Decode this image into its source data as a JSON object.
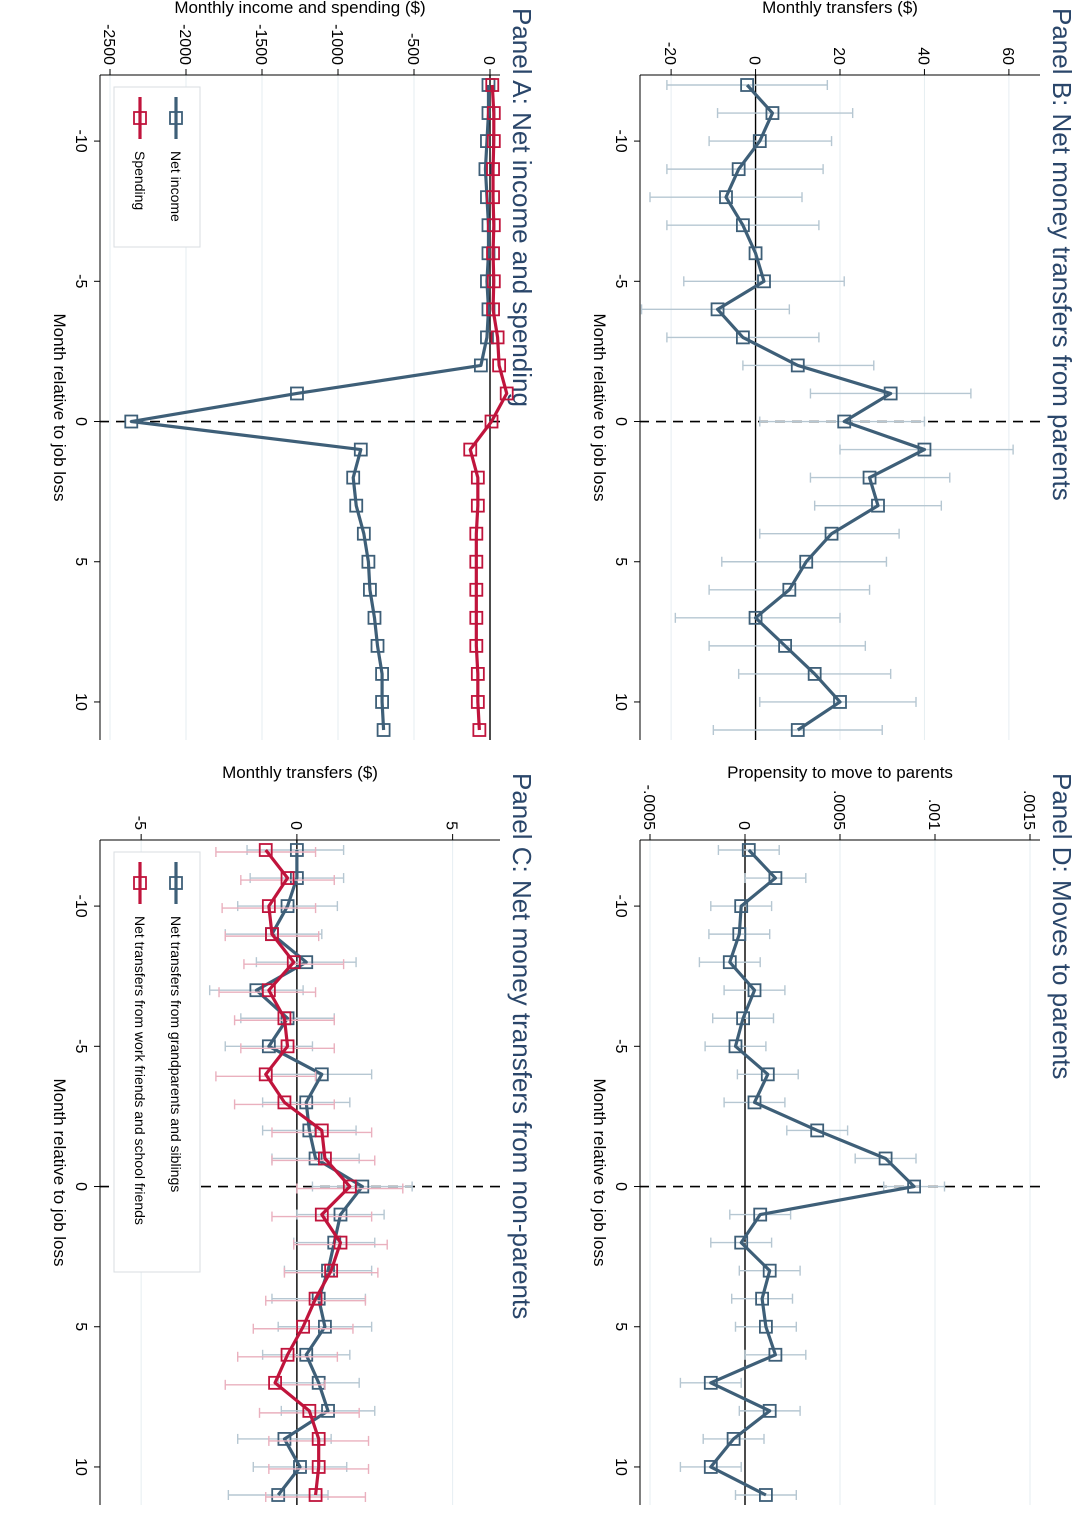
{
  "colors": {
    "navy": "#3e5f78",
    "crimson": "#c0143c",
    "navy_ci": "#b6c7d2",
    "crimson_ci": "#eab0be",
    "grid": "#e6eef2",
    "axis": "#000000",
    "title": "#2a466a"
  },
  "chart_data": [
    {
      "type": "line",
      "title": "Panel A: Net income and spending",
      "xlabel": "Month relative to job loss",
      "ylabel": "Monthly income and spending ($)",
      "xlim": [
        -12,
        11
      ],
      "ylim": [
        -2500,
        0
      ],
      "xticks": [
        -10,
        -5,
        0,
        5,
        10
      ],
      "xtick_labels": [
        "-10",
        "-5",
        "0",
        "5",
        "10"
      ],
      "yticks": [
        0,
        -500,
        -1000,
        -1500,
        -2000,
        -2500
      ],
      "ytick_labels": [
        "0",
        "-500",
        "-1000",
        "-1500",
        "-2000",
        "-2500"
      ],
      "hline": 0,
      "vline": 0,
      "x": [
        -12,
        -11,
        -10,
        -9,
        -8,
        -7,
        -6,
        -5,
        -4,
        -3,
        -2,
        -1,
        0,
        1,
        2,
        3,
        4,
        5,
        6,
        7,
        8,
        9,
        10,
        11
      ],
      "series": [
        {
          "name": "Net income",
          "color": "#3e5f78",
          "values": [
            -10,
            -10,
            -20,
            -30,
            -20,
            -10,
            -10,
            -20,
            -10,
            -20,
            -60,
            -1270,
            -2360,
            -850,
            -900,
            -880,
            -830,
            -800,
            -790,
            -760,
            -740,
            -710,
            -710,
            -700
          ]
        },
        {
          "name": "Spending",
          "color": "#c0143c",
          "values": [
            15,
            25,
            25,
            20,
            20,
            25,
            20,
            25,
            20,
            50,
            60,
            110,
            10,
            -130,
            -80,
            -80,
            -90,
            -90,
            -90,
            -90,
            -90,
            -80,
            -80,
            -70
          ]
        }
      ],
      "legend": {
        "position": "bottom-left",
        "entries": [
          "Net income",
          "Spending"
        ]
      }
    },
    {
      "type": "line",
      "title": "Panel B: Net money transfers from parents",
      "xlabel": "Month relative to job loss",
      "ylabel": "Monthly transfers ($)",
      "xlim": [
        -12,
        11
      ],
      "ylim": [
        -25,
        65
      ],
      "xticks": [
        -10,
        -5,
        0,
        5,
        10
      ],
      "xtick_labels": [
        "-10",
        "-5",
        "0",
        "5",
        "10"
      ],
      "yticks": [
        60,
        40,
        20,
        0,
        -20
      ],
      "ytick_labels": [
        "60",
        "40",
        "20",
        "0",
        "-20"
      ],
      "hline": 0,
      "vline": 0,
      "x": [
        -12,
        -11,
        -10,
        -9,
        -8,
        -7,
        -6,
        -5,
        -4,
        -3,
        -2,
        -1,
        0,
        1,
        2,
        3,
        4,
        5,
        6,
        7,
        8,
        9,
        10,
        11
      ],
      "series": [
        {
          "name": "Net money transfers from parents",
          "color": "#3e5f78",
          "values": [
            -2,
            4,
            1,
            -4,
            -7,
            -3,
            0,
            2,
            -9,
            -3,
            10,
            32,
            21,
            40,
            27,
            29,
            18,
            12,
            8,
            0,
            7,
            14,
            20,
            10
          ],
          "ci_low": [
            -21,
            -9,
            -11,
            -21,
            -25,
            -21,
            0,
            -17,
            -27,
            -21,
            -3,
            13,
            1,
            20,
            13,
            14,
            1,
            -8,
            -11,
            -19,
            -11,
            -4,
            1,
            -10
          ],
          "ci_high": [
            17,
            23,
            18,
            16,
            11,
            15,
            0,
            21,
            8,
            15,
            28,
            51,
            40,
            61,
            46,
            44,
            34,
            31,
            27,
            20,
            26,
            32,
            38,
            30
          ]
        }
      ]
    },
    {
      "type": "line",
      "title": "Panel C: Net money transfers from non-parents",
      "xlabel": "Month relative to job loss",
      "ylabel": "Monthly transfers ($)",
      "xlim": [
        -12,
        11
      ],
      "ylim": [
        -6,
        6.2
      ],
      "xticks": [
        -10,
        -5,
        0,
        5,
        10
      ],
      "xtick_labels": [
        "-10",
        "-5",
        "0",
        "5",
        "10"
      ],
      "yticks": [
        5,
        0,
        -5
      ],
      "ytick_labels": [
        "5",
        "0",
        "-5"
      ],
      "hline": 0,
      "vline": 0,
      "x": [
        -12,
        -11,
        -10,
        -9,
        -8,
        -7,
        -6,
        -5,
        -4,
        -3,
        -2,
        -1,
        0,
        1,
        2,
        3,
        4,
        5,
        6,
        7,
        8,
        9,
        10,
        11
      ],
      "series": [
        {
          "name": "Net transfers from grandparents and siblings",
          "color": "#3e5f78",
          "values": [
            0,
            0,
            -0.3,
            -0.8,
            0.3,
            -1.3,
            -0.3,
            -0.9,
            0.8,
            0.3,
            0.4,
            0.6,
            2.1,
            1.4,
            1.2,
            1.0,
            0.7,
            0.9,
            0.3,
            0.7,
            1.0,
            -0.4,
            0.1,
            -0.6
          ],
          "ci_low": [
            -1.6,
            -1.5,
            -1.9,
            -2.3,
            -1.3,
            -2.8,
            -1.8,
            -2.3,
            -0.8,
            -1.1,
            -1.1,
            -0.8,
            0.5,
            0,
            -0.1,
            -0.4,
            -0.8,
            -0.6,
            -1.1,
            -0.6,
            -0.5,
            -1.9,
            -1.4,
            -2.2
          ],
          "ci_high": [
            1.5,
            1.5,
            1.3,
            0.8,
            1.9,
            0.2,
            1.2,
            0.5,
            2.4,
            1.7,
            1.9,
            2.0,
            3.7,
            2.8,
            2.5,
            2.4,
            2.2,
            2.4,
            1.7,
            2.0,
            2.5,
            1.1,
            1.6,
            1.0
          ]
        },
        {
          "name": "Net transfers from work friends and school friends",
          "color": "#c0143c",
          "values": [
            -1.0,
            -0.3,
            -0.9,
            -0.8,
            -0.1,
            -0.9,
            -0.4,
            -0.3,
            -1.0,
            -0.4,
            0.8,
            0.9,
            1.7,
            0.8,
            1.4,
            1.1,
            0.6,
            0.2,
            -0.3,
            -0.7,
            0.4,
            0.7,
            0.7,
            0.6
          ],
          "ci_low": [
            -2.6,
            -1.8,
            -2.4,
            -2.3,
            -1.7,
            -2.5,
            -2.0,
            -1.8,
            -2.6,
            -2.0,
            -0.8,
            -0.8,
            0,
            -0.8,
            -0.1,
            -0.4,
            -1.0,
            -1.4,
            -1.9,
            -2.3,
            -1.2,
            -0.9,
            -0.9,
            -1.0
          ],
          "ci_high": [
            0.6,
            1.2,
            0.6,
            0.7,
            1.5,
            0.6,
            1.2,
            1.2,
            0.6,
            1.2,
            2.4,
            2.5,
            3.4,
            2.4,
            2.9,
            2.6,
            2.2,
            1.8,
            1.3,
            0.9,
            2.0,
            2.3,
            2.3,
            2.2
          ]
        }
      ],
      "legend": {
        "position": "top-left",
        "entries": [
          "Net transfers from grandparents and siblings",
          "Net transfers from work friends and school friends"
        ]
      }
    },
    {
      "type": "line",
      "title": "Panel D: Moves to parents",
      "xlabel": "Month relative to job loss",
      "ylabel": "Propensity to move to parents",
      "xlim": [
        -12,
        11
      ],
      "ylim": [
        -0.0005,
        0.0015
      ],
      "xticks": [
        -10,
        -5,
        0,
        5,
        10
      ],
      "xtick_labels": [
        "-10",
        "-5",
        "0",
        "5",
        "10"
      ],
      "yticks": [
        0.0015,
        0.001,
        0.0005,
        0,
        -0.0005
      ],
      "ytick_labels": [
        ".0015",
        ".001",
        ".0005",
        "0",
        "-.0005"
      ],
      "hline": 0,
      "vline": 0,
      "x": [
        -12,
        -11,
        -10,
        -9,
        -8,
        -7,
        -6,
        -5,
        -4,
        -3,
        -2,
        -1,
        0,
        1,
        2,
        3,
        4,
        5,
        6,
        7,
        8,
        9,
        10,
        11
      ],
      "series": [
        {
          "name": "Moves to parents",
          "color": "#3e5f78",
          "values": [
            2e-05,
            0.00016,
            -2e-05,
            -3e-05,
            -8e-05,
            5e-05,
            -1e-05,
            -5e-05,
            0.00012,
            5e-05,
            0.00038,
            0.00074,
            0.00089,
            8e-05,
            -2e-05,
            0.00013,
            9e-05,
            0.00011,
            0.00016,
            -0.00018,
            0.00013,
            -6e-05,
            -0.00018,
            0.00011
          ],
          "ci_low": [
            -0.00014,
            0,
            -0.00018,
            -0.00019,
            -0.00024,
            -0.00011,
            -0.00017,
            -0.00021,
            -4e-05,
            -0.00011,
            0.00022,
            0.00058,
            0.00073,
            -8e-05,
            -0.00018,
            -3e-05,
            -7e-05,
            -5e-05,
            0,
            -0.00034,
            -3e-05,
            -0.00022,
            -0.00034,
            -5e-05
          ],
          "ci_high": [
            0.00018,
            0.00032,
            0.00014,
            0.00013,
            8e-05,
            0.00021,
            0.00015,
            0.00011,
            0.00028,
            0.00021,
            0.00054,
            0.0009,
            0.00105,
            0.00024,
            0.00014,
            0.00029,
            0.00025,
            0.00027,
            0.00032,
            -2e-05,
            0.00029,
            0.0001,
            -2e-05,
            0.00027
          ]
        }
      ]
    }
  ]
}
